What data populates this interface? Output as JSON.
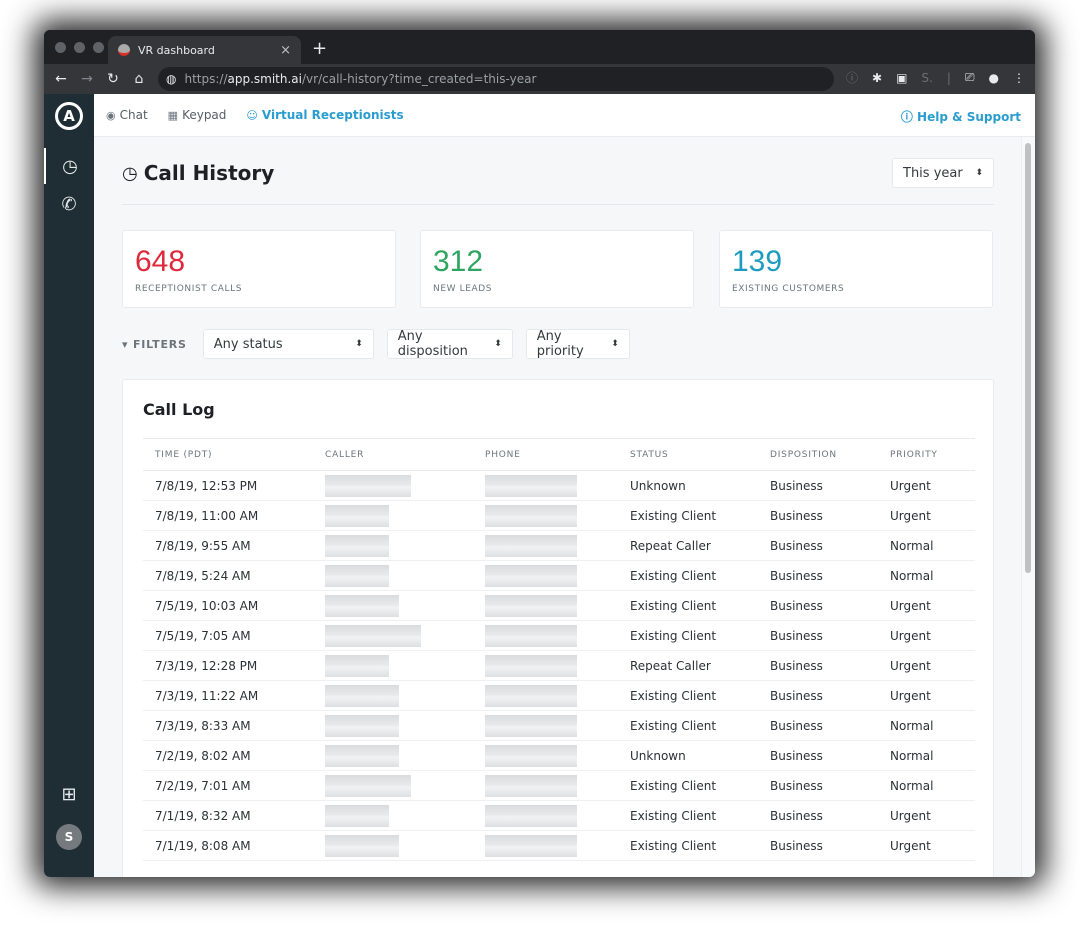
{
  "browser": {
    "tab_title": "VR dashboard",
    "new_tab_label": "+",
    "close_label": "×",
    "url_scheme": "https://",
    "url_host": "app.smith.ai",
    "url_path": "/vr/call-history?time_created=this-year"
  },
  "topnav": {
    "items": [
      {
        "label": "Chat",
        "icon": "chat-icon"
      },
      {
        "label": "Keypad",
        "icon": "keypad-icon"
      },
      {
        "label": "Virtual Receptionists",
        "icon": "receptionist-icon",
        "active": true
      }
    ],
    "help_label": "Help & Support"
  },
  "page": {
    "title": "Call History",
    "range_select": "This year"
  },
  "stats": [
    {
      "value": "648",
      "label": "RECEPTIONIST CALLS",
      "color": "#e0283d"
    },
    {
      "value": "312",
      "label": "NEW LEADS",
      "color": "#2ea560"
    },
    {
      "value": "139",
      "label": "EXISTING CUSTOMERS",
      "color": "#1b9cc0"
    }
  ],
  "filters": {
    "label": "FILTERS",
    "status": "Any status",
    "disposition": "Any disposition",
    "priority": "Any priority"
  },
  "call_log": {
    "title": "Call Log",
    "columns": [
      "TIME (PDT)",
      "CALLER",
      "PHONE",
      "STATUS",
      "DISPOSITION",
      "PRIORITY"
    ],
    "rows": [
      {
        "time": "7/8/19, 12:53 PM",
        "status": "Unknown",
        "disposition": "Business",
        "priority": "Urgent"
      },
      {
        "time": "7/8/19, 11:00 AM",
        "status": "Existing Client",
        "disposition": "Business",
        "priority": "Urgent"
      },
      {
        "time": "7/8/19, 9:55 AM",
        "status": "Repeat Caller",
        "disposition": "Business",
        "priority": "Normal"
      },
      {
        "time": "7/8/19, 5:24 AM",
        "status": "Existing Client",
        "disposition": "Business",
        "priority": "Normal"
      },
      {
        "time": "7/5/19, 10:03 AM",
        "status": "Existing Client",
        "disposition": "Business",
        "priority": "Urgent"
      },
      {
        "time": "7/5/19, 7:05 AM",
        "status": "Existing Client",
        "disposition": "Business",
        "priority": "Urgent"
      },
      {
        "time": "7/3/19, 12:28 PM",
        "status": "Repeat Caller",
        "disposition": "Business",
        "priority": "Urgent"
      },
      {
        "time": "7/3/19, 11:22 AM",
        "status": "Existing Client",
        "disposition": "Business",
        "priority": "Urgent"
      },
      {
        "time": "7/3/19, 8:33 AM",
        "status": "Existing Client",
        "disposition": "Business",
        "priority": "Normal"
      },
      {
        "time": "7/2/19, 8:02 AM",
        "status": "Unknown",
        "disposition": "Business",
        "priority": "Normal"
      },
      {
        "time": "7/2/19, 7:01 AM",
        "status": "Existing Client",
        "disposition": "Business",
        "priority": "Normal"
      },
      {
        "time": "7/1/19, 8:32 AM",
        "status": "Existing Client",
        "disposition": "Business",
        "priority": "Urgent"
      },
      {
        "time": "7/1/19, 8:08 AM",
        "status": "Existing Client",
        "disposition": "Business",
        "priority": "Urgent"
      }
    ]
  },
  "sidenav": {
    "avatar_initial": "S"
  }
}
